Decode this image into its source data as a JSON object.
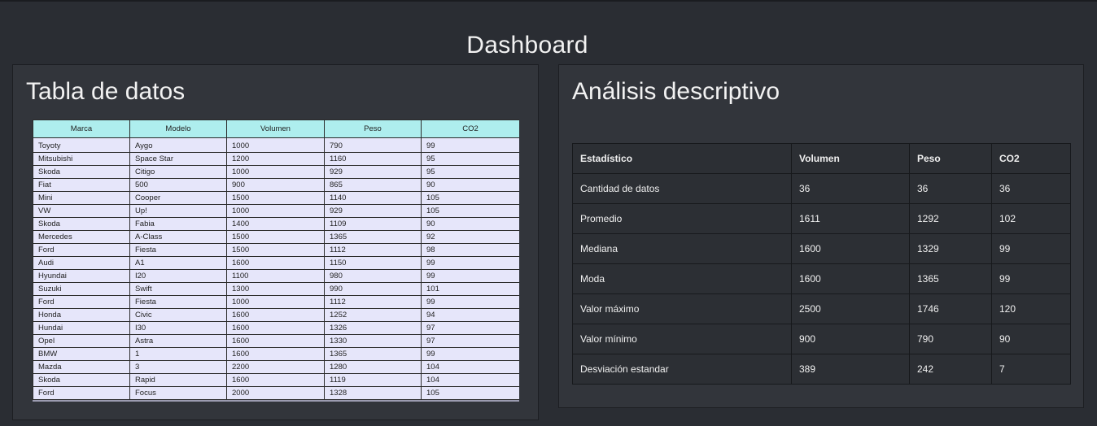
{
  "header": {
    "title": "Dashboard"
  },
  "left_panel": {
    "title": "Tabla de datos",
    "columns": [
      "Marca",
      "Modelo",
      "Volumen",
      "Peso",
      "CO2"
    ],
    "rows": [
      [
        "Toyoty",
        "Aygo",
        "1000",
        "790",
        "99"
      ],
      [
        "Mitsubishi",
        "Space Star",
        "1200",
        "1160",
        "95"
      ],
      [
        "Skoda",
        "Citigo",
        "1000",
        "929",
        "95"
      ],
      [
        "Fiat",
        "500",
        "900",
        "865",
        "90"
      ],
      [
        "Mini",
        "Cooper",
        "1500",
        "1140",
        "105"
      ],
      [
        "VW",
        "Up!",
        "1000",
        "929",
        "105"
      ],
      [
        "Skoda",
        "Fabia",
        "1400",
        "1109",
        "90"
      ],
      [
        "Mercedes",
        "A-Class",
        "1500",
        "1365",
        "92"
      ],
      [
        "Ford",
        "Fiesta",
        "1500",
        "1112",
        "98"
      ],
      [
        "Audi",
        "A1",
        "1600",
        "1150",
        "99"
      ],
      [
        "Hyundai",
        "I20",
        "1100",
        "980",
        "99"
      ],
      [
        "Suzuki",
        "Swift",
        "1300",
        "990",
        "101"
      ],
      [
        "Ford",
        "Fiesta",
        "1000",
        "1112",
        "99"
      ],
      [
        "Honda",
        "Civic",
        "1600",
        "1252",
        "94"
      ],
      [
        "Hundai",
        "I30",
        "1600",
        "1326",
        "97"
      ],
      [
        "Opel",
        "Astra",
        "1600",
        "1330",
        "97"
      ],
      [
        "BMW",
        "1",
        "1600",
        "1365",
        "99"
      ],
      [
        "Mazda",
        "3",
        "2200",
        "1280",
        "104"
      ],
      [
        "Skoda",
        "Rapid",
        "1600",
        "1119",
        "104"
      ],
      [
        "Ford",
        "Focus",
        "2000",
        "1328",
        "105"
      ]
    ]
  },
  "right_panel": {
    "title": "Análisis descriptivo",
    "columns": [
      "Estadístico",
      "Volumen",
      "Peso",
      "CO2"
    ],
    "rows": [
      [
        "Cantidad de datos",
        "36",
        "36",
        "36"
      ],
      [
        "Promedio",
        "1611",
        "1292",
        "102"
      ],
      [
        "Mediana",
        "1600",
        "1329",
        "99"
      ],
      [
        "Moda",
        "1600",
        "1365",
        "99"
      ],
      [
        "Valor máximo",
        "2500",
        "1746",
        "120"
      ],
      [
        "Valor mínimo",
        "900",
        "790",
        "90"
      ],
      [
        "Desviación estandar",
        "389",
        "242",
        "7"
      ]
    ]
  },
  "colors": {
    "background": "#2a2d33",
    "panel": "#32353b",
    "table_header": "#aeeeee",
    "table_body": "#e6e6fa"
  }
}
